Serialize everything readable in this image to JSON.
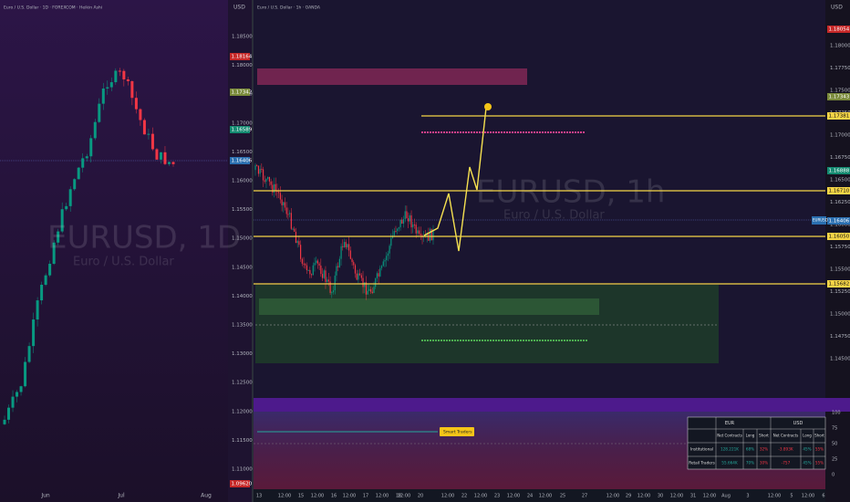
{
  "left_chart": {
    "title": "Euro / U.S. Dollar · 1D · FOREXCOM · Heikin Ashi",
    "currency": "USD",
    "watermark_symbol": "EURUSD, 1D",
    "watermark_name": "Euro / U.S. Dollar",
    "price_labels": [
      "1.18500",
      "1.18000",
      "1.17500",
      "1.17000",
      "1.16500",
      "1.16000",
      "1.15500",
      "1.15000",
      "1.14500",
      "1.14000",
      "1.13500",
      "1.13000",
      "1.12500",
      "1.12000",
      "1.11500",
      "1.11000"
    ],
    "badges": [
      "1.18164",
      "1.17342",
      "1.16589",
      "1.16406",
      "1.09620"
    ],
    "time_labels": [
      "Jun",
      "Jul",
      "Aug"
    ]
  },
  "right_chart": {
    "title": "Euro / U.S. Dollar · 1h · OANDA",
    "currency": "USD",
    "watermark_symbol": "EURUSD, 1h",
    "watermark_name": "Euro / U.S. Dollar",
    "price_labels": [
      "1.18000",
      "1.17750",
      "1.17500",
      "1.17250",
      "1.17000",
      "1.16750",
      "1.16500",
      "1.16250",
      "1.16000",
      "1.15750",
      "1.15500",
      "1.15250",
      "1.15000",
      "1.14750",
      "1.14500"
    ],
    "badges": [
      "1.18054",
      "1.17343",
      "1.16888",
      "1.16406"
    ],
    "levels": [
      "1.17381",
      "1.16710",
      "1.16050",
      "1.15682"
    ],
    "symbol_badge": "EURUSD",
    "time_labels": [
      "13",
      "12:00",
      "15",
      "12:00",
      "16",
      "12:00",
      "17",
      "12:00",
      "18",
      "12:00",
      "20",
      "12:00",
      "22",
      "12:00",
      "23",
      "12:00",
      "24",
      "12:00",
      "25",
      "27",
      "12:00",
      "29",
      "12:00",
      "30",
      "12:00",
      "31",
      "12:00",
      "Aug",
      "3",
      "12:00",
      "5",
      "12:00",
      "6"
    ],
    "indicator_label": "Smart Traders",
    "indicator_scale": [
      "100",
      "75",
      "50",
      "25",
      "0"
    ]
  },
  "cot_table": {
    "currency_headers": [
      "EUR",
      "USD"
    ],
    "columns": [
      "Net Contracts",
      "Long",
      "Short",
      "Net Contracts",
      "Long",
      "Short"
    ],
    "rows": [
      [
        "Institutional",
        "128.221K",
        "68%",
        "32%",
        "-3.893K",
        "45%",
        "55%"
      ],
      [
        "Retail Traders",
        "55.664K",
        "70%",
        "30%",
        "-757",
        "45%",
        "55%"
      ]
    ]
  }
}
